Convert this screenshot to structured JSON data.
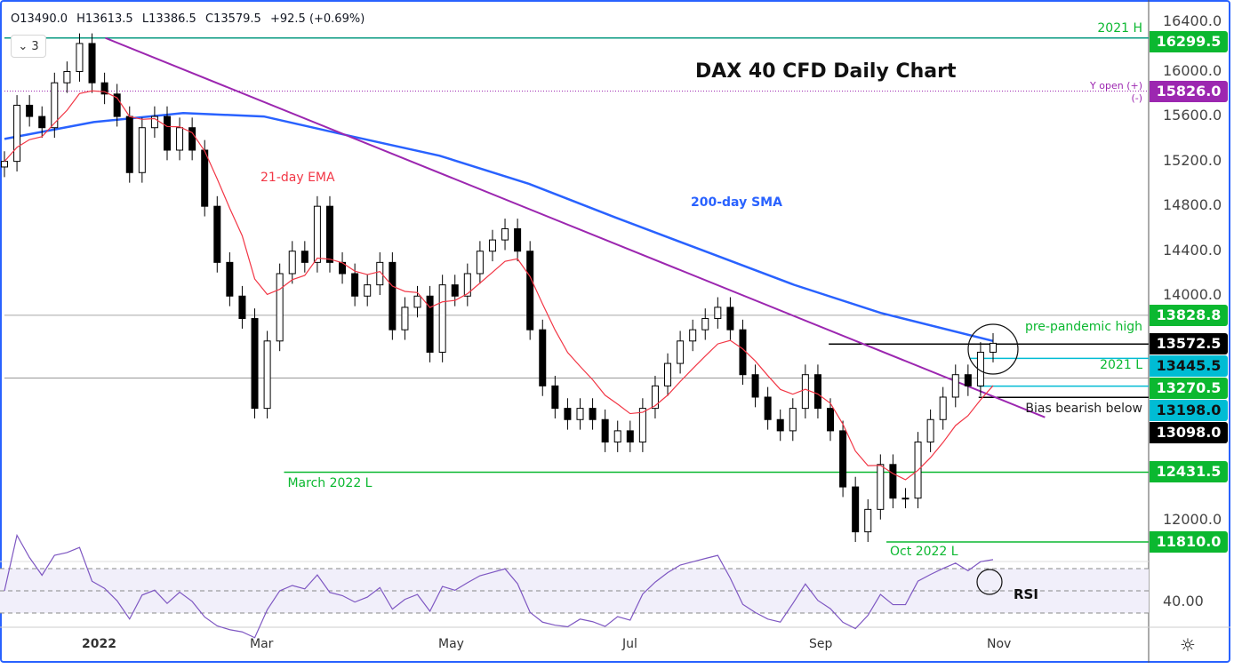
{
  "header": {
    "open": "O13490.0",
    "high": "H13613.5",
    "low": "L13386.5",
    "close": "C13579.5",
    "change": "+92.5 (+0.69%)",
    "indicator_count": "3"
  },
  "chart_data": {
    "type": "candlestick",
    "title": "DAX 40 CFD Daily Chart",
    "start_date": "2021-12-01",
    "end_date": "2022-11-09",
    "closes": [
      15200,
      15700,
      15600,
      15500,
      15900,
      16000,
      16250,
      15900,
      15800,
      15600,
      15100,
      15500,
      15600,
      15300,
      15500,
      15300,
      14800,
      14300,
      14000,
      13800,
      13000,
      13600,
      14200,
      14400,
      14300,
      14800,
      14300,
      14200,
      14000,
      14100,
      14300,
      13700,
      13900,
      14000,
      13500,
      14100,
      14000,
      14200,
      14400,
      14500,
      14600,
      14400,
      13700,
      13200,
      13000,
      12900,
      13000,
      12900,
      12700,
      12800,
      12700,
      13000,
      13200,
      13400,
      13600,
      13700,
      13800,
      13900,
      13700,
      13300,
      13100,
      12900,
      12800,
      13000,
      13300,
      13000,
      12800,
      12300,
      11900,
      12100,
      12500,
      12200,
      12200,
      12700,
      12900,
      13100,
      13300,
      13200,
      13500,
      13579.5
    ],
    "sma200": {
      "label": "200-day SMA",
      "color": "#2962ff",
      "points": [
        [
          "2021-12-01",
          15400
        ],
        [
          "2022-01-01",
          15550
        ],
        [
          "2022-02-01",
          15630
        ],
        [
          "2022-03-01",
          15600
        ],
        [
          "2022-04-01",
          15420
        ],
        [
          "2022-05-01",
          15250
        ],
        [
          "2022-06-01",
          15000
        ],
        [
          "2022-07-01",
          14700
        ],
        [
          "2022-08-01",
          14400
        ],
        [
          "2022-09-01",
          14100
        ],
        [
          "2022-10-01",
          13850
        ],
        [
          "2022-11-09",
          13600
        ]
      ]
    },
    "ema21": {
      "label": "21-day EMA",
      "color": "#f23645"
    },
    "trendline": {
      "color": "#9c27b0",
      "points": [
        [
          "2022-01-05",
          16299.5
        ],
        [
          "2022-11-27",
          12920
        ]
      ]
    },
    "levels": [
      {
        "value": 16299.5,
        "label": "16299.5",
        "note": "2021 H",
        "color": "#089981",
        "bg": "#0bb830",
        "from": "2021-12-01"
      },
      {
        "value": 15826.0,
        "label": "15826.0",
        "note": "Y open (+)",
        "note2": "(-)",
        "color": "#9c27b0",
        "bg": "#9c27b0",
        "from": "2021-12-01",
        "dotted": true
      },
      {
        "value": 13828.8,
        "label": "13828.8",
        "note": "pre-pandemic high",
        "color": "#888",
        "bg": "#0bb830",
        "from": "2021-12-01"
      },
      {
        "value": 13572.5,
        "label": "13572.5",
        "note": "",
        "color": "#000",
        "bg": "#000",
        "from": "2022-09-13"
      },
      {
        "value": 13445.5,
        "label": "13445.5",
        "note": "2021 L",
        "color": "#00bcd4",
        "bg": "#00bcd4",
        "from": "2022-11-01",
        "dark": true
      },
      {
        "value": 13270.5,
        "label": "13270.5",
        "note": "",
        "color": "#888",
        "bg": "#0bb830",
        "from": "2021-12-01"
      },
      {
        "value": 13198.0,
        "label": "13198.0",
        "note": "Bias bearish below",
        "color": "#00bcd4",
        "bg": "#00bcd4",
        "from": "2022-11-04",
        "dark": true
      },
      {
        "value": 13098.0,
        "label": "13098.0",
        "note": "",
        "color": "#000",
        "bg": "#000",
        "from": "2022-11-04"
      },
      {
        "value": 12431.5,
        "label": "12431.5",
        "note": "March 2022 L",
        "color": "#0bb830",
        "bg": "#0bb830",
        "from": "2022-03-08"
      },
      {
        "value": 11810.0,
        "label": "11810.0",
        "note": "Oct 2022 L",
        "color": "#0bb830",
        "bg": "#0bb830",
        "from": "2022-10-03"
      }
    ],
    "y_ticks": [
      "16400.0",
      "16000.0",
      "15600.0",
      "15200.0",
      "14800.0",
      "14400.0",
      "14000.0",
      "12000.0"
    ],
    "ylim": [
      11700,
      16500
    ],
    "x_ticks": [
      "2022",
      "Mar",
      "May",
      "Jul",
      "Sep",
      "Nov"
    ],
    "rsi": {
      "label": "RSI",
      "tick": "40.00",
      "color": "#7e57c2"
    }
  }
}
